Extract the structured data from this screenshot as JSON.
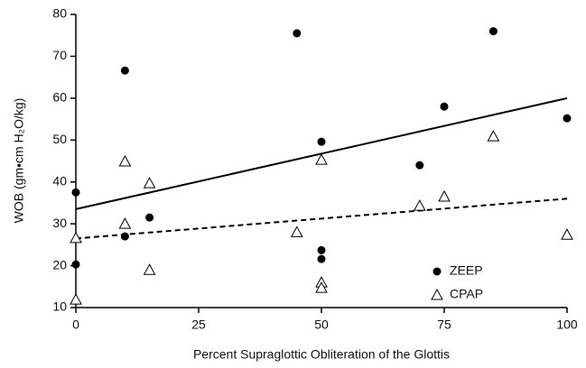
{
  "chart_data": {
    "type": "scatter",
    "xlabel": "Percent Supraglottic Obliteration of the Glottis",
    "ylabel": "WOB (gm•cm H₂O/kg)",
    "xlim": [
      0,
      100
    ],
    "xticks": [
      0,
      25,
      50,
      75,
      100
    ],
    "ylim": [
      10,
      80
    ],
    "yticks": [
      10,
      20,
      30,
      40,
      50,
      60,
      70,
      80
    ],
    "grid": false,
    "legend": "lower right",
    "series": [
      {
        "name": "ZEEP",
        "color": "#000000",
        "marker": "filled-circle",
        "fit_style": "solid",
        "x": [
          0,
          0,
          10,
          10,
          15,
          45,
          50,
          50,
          50,
          70,
          75,
          85,
          100
        ],
        "values": [
          37.5,
          20.3,
          66.6,
          27,
          31.5,
          75.5,
          49.6,
          23.7,
          21.6,
          44,
          58,
          76,
          55.2
        ],
        "fit": [
          33.5,
          60
        ]
      },
      {
        "name": "CPAP",
        "color": "#000000",
        "marker": "open-triangle",
        "fit_style": "dashed",
        "x": [
          0,
          0,
          10,
          10,
          15,
          15,
          45,
          50,
          50,
          50,
          70,
          75,
          85,
          100
        ],
        "values": [
          26.6,
          11.9,
          44.9,
          30,
          39.7,
          19,
          28,
          45.3,
          16,
          14.7,
          34.3,
          36.5,
          50.9,
          27.4
        ],
        "fit": [
          26.5,
          36
        ]
      }
    ]
  }
}
